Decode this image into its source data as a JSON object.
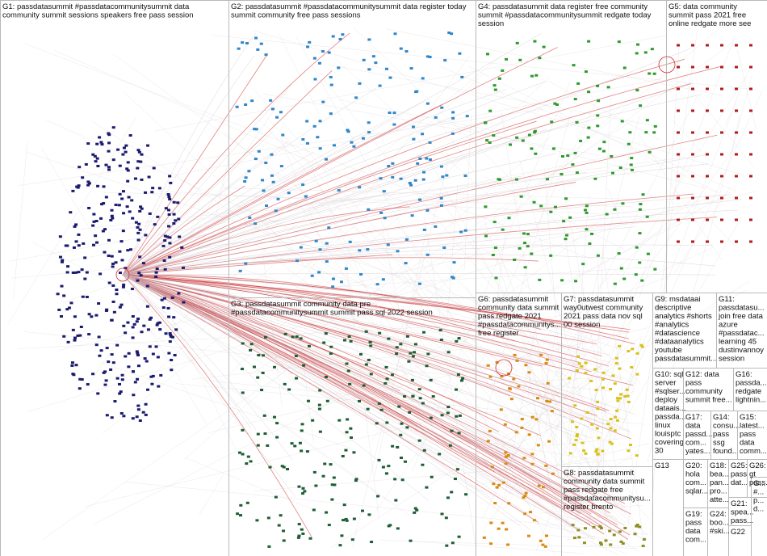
{
  "groups": [
    {
      "id": "G1",
      "color": "#1a1a6e",
      "label": [
        "G1: passdatasummit #passdatacommunitysummit data",
        "community summit sessions speakers free pass session"
      ]
    },
    {
      "id": "G2",
      "color": "#2f86c9",
      "label": [
        "G2: passdatasummit #passdatacommunitysummit data register today",
        "summit community free pass sessions"
      ]
    },
    {
      "id": "G3",
      "color": "#1d5e34",
      "label": [
        "G3: passdatasummit community data pre",
        "#passdatacommunitysummit summit pass sql 2022 session"
      ]
    },
    {
      "id": "G4",
      "color": "#2e9a2e",
      "label": [
        "G4: passdatasummit data register free community",
        "summit #passdatacommunitysummit redgate today",
        "session"
      ]
    },
    {
      "id": "G5",
      "color": "#b01e1e",
      "label": [
        "G5: data community",
        "summit pass 2021 free",
        "online redgate more see"
      ]
    },
    {
      "id": "G6",
      "color": "#d98a10",
      "label": [
        "G6: passdatasummit",
        "community data summit",
        "pass redgate 2021",
        "#passdatacommunitys...",
        "free register"
      ]
    },
    {
      "id": "G7",
      "color": "#d8c21a",
      "label": [
        "G7: passdatasummit",
        "way0utwest community",
        "2021 pass data nov sql",
        "00 session"
      ]
    },
    {
      "id": "G8",
      "color": "#8f8f20",
      "label": [
        "G8: passdatasummit",
        "community data summit",
        "pass redgate free",
        "#passdatacommunitysu...",
        "register brento"
      ]
    },
    {
      "id": "G9",
      "color": "#555",
      "label": [
        "G9: msdataai",
        "descriptive",
        "analytics #shorts",
        "#analytics",
        "#datascience",
        "#dataanalytics",
        "youtube",
        "passdatasummit..."
      ]
    },
    {
      "id": "G10",
      "color": "#555",
      "label": [
        "G10: sql",
        "server",
        "#sqlser...",
        "deploy",
        "dataais...",
        "passda...",
        "linux",
        "louisptc",
        "covering",
        "30"
      ]
    },
    {
      "id": "G11",
      "color": "#555",
      "label": [
        "G11:",
        "passdatasu...",
        "join free data",
        "azure",
        "#passdatac...",
        "learning 45",
        "dustinvannoy",
        "session"
      ]
    },
    {
      "id": "G12",
      "color": "#555",
      "label": [
        "G12: data",
        "pass",
        "community",
        "summit free..."
      ]
    },
    {
      "id": "G13",
      "color": "#555",
      "label": [
        "G13"
      ]
    },
    {
      "id": "G14",
      "color": "#555",
      "label": [
        "G14:",
        "consu...",
        "pass",
        "ssg",
        "found..."
      ]
    },
    {
      "id": "G15",
      "color": "#555",
      "label": [
        "G15:",
        "latest...",
        "pass",
        "data",
        "comm..."
      ]
    },
    {
      "id": "G16",
      "color": "#555",
      "label": [
        "G16:",
        "passda...",
        "redgate",
        "lightnin..."
      ]
    },
    {
      "id": "G17",
      "color": "#555",
      "label": [
        "G17:",
        "data",
        "passd...",
        "com...",
        "yates..."
      ]
    },
    {
      "id": "G18",
      "color": "#555",
      "label": [
        "G18:",
        "bea...",
        "pan...",
        "pro...",
        "atte..."
      ]
    },
    {
      "id": "G19",
      "color": "#555",
      "label": [
        "G19:",
        "pass",
        "data",
        "com..."
      ]
    },
    {
      "id": "G20",
      "color": "#555",
      "label": [
        "G20:",
        "hola",
        "com...",
        "sqlar..."
      ]
    },
    {
      "id": "G21",
      "color": "#555",
      "label": [
        "G21:",
        "spea...",
        "pass..."
      ]
    },
    {
      "id": "G22",
      "color": "#555",
      "label": [
        "G22"
      ]
    },
    {
      "id": "G23",
      "color": "#555",
      "label": [
        "G...",
        "#...",
        "p...",
        "d..."
      ]
    },
    {
      "id": "G24",
      "color": "#555",
      "label": [
        "G24:",
        "boo...",
        "#ski..."
      ]
    },
    {
      "id": "G25",
      "color": "#555",
      "label": [
        "G25:",
        "pass",
        "dat..."
      ]
    },
    {
      "id": "G26",
      "color": "#555",
      "label": [
        "G26:",
        "gt",
        "pass..."
      ]
    }
  ]
}
